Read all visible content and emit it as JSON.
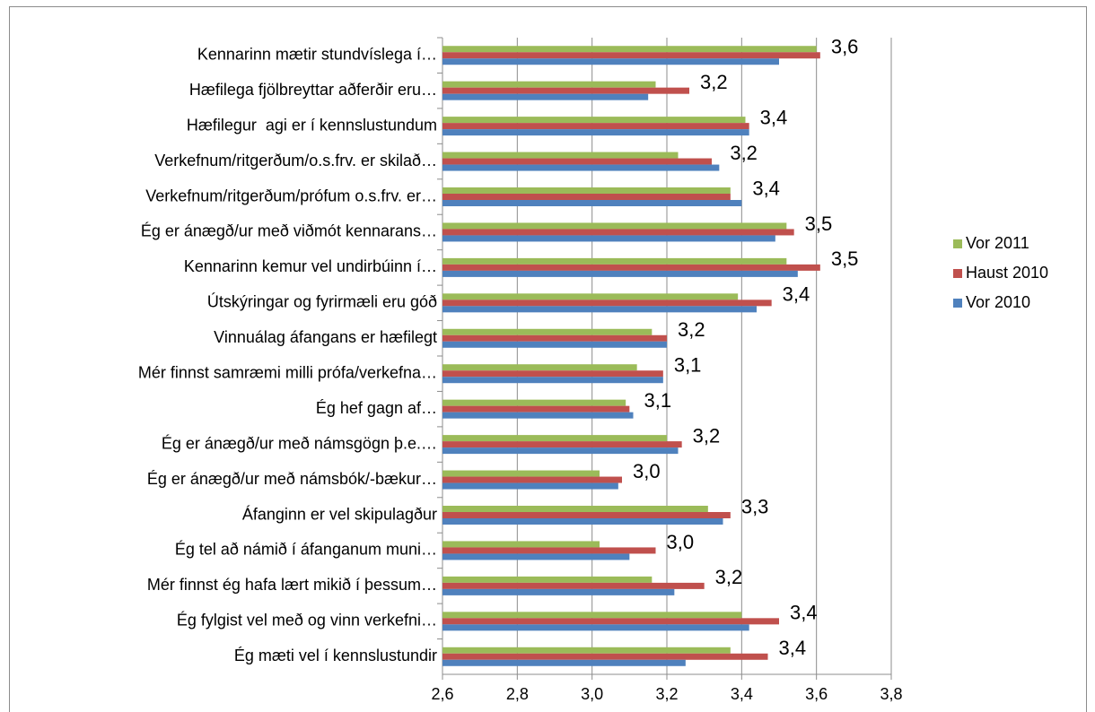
{
  "chart_data": {
    "type": "hbar",
    "categories": [
      "Kennarinn mætir stundvíslega í…",
      "Hæfilega fjölbreyttar aðferðir eru…",
      "Hæfilegur  agi er í kennslustundum",
      "Verkefnum/ritgerðum/o.s.frv. er skilað…",
      "Verkefnum/ritgerðum/prófum o.s.frv. er…",
      "Ég er ánægð/ur með viðmót kennarans…",
      "Kennarinn kemur vel undirbúinn í…",
      "Útskýringar og fyrirmæli eru góð",
      "Vinnuálag áfangans er hæfilegt",
      "Mér finnst samræmi milli prófa/verkefna…",
      "Ég hef gagn af…",
      "Ég er ánægð/ur með námsgögn þ.e.…",
      "Ég er ánægð/ur með námsbók/-bækur…",
      "Áfanginn er vel skipulagður",
      "Ég tel að námið í áfanganum muni…",
      "Mér finnst ég hafa lært mikið í þessum…",
      "Ég fylgist vel með og vinn verkefni…",
      "Ég mæti vel í kennslustundir"
    ],
    "series": [
      {
        "name": "Vor 2011",
        "color": "#9bbb59",
        "values": [
          3.6,
          3.17,
          3.41,
          3.23,
          3.37,
          3.52,
          3.52,
          3.39,
          3.16,
          3.12,
          3.09,
          3.2,
          3.02,
          3.31,
          3.02,
          3.16,
          3.4,
          3.37
        ],
        "value_labels": [
          "3,6",
          "3,2",
          "3,4",
          "3,2",
          "3,4",
          "3,5",
          "3,5",
          "3,4",
          "3,2",
          "3,1",
          "3,1",
          "3,2",
          "3,0",
          "3,3",
          "3,0",
          "3,2",
          "3,4",
          "3,4"
        ]
      },
      {
        "name": "Haust 2010",
        "color": "#c0504d",
        "values": [
          3.61,
          3.26,
          3.42,
          3.32,
          3.37,
          3.54,
          3.61,
          3.48,
          3.2,
          3.19,
          3.1,
          3.24,
          3.08,
          3.37,
          3.17,
          3.3,
          3.5,
          3.47
        ]
      },
      {
        "name": "Vor 2010",
        "color": "#4f81bd",
        "values": [
          3.5,
          3.15,
          3.42,
          3.34,
          3.4,
          3.49,
          3.55,
          3.44,
          3.2,
          3.19,
          3.11,
          3.23,
          3.07,
          3.35,
          3.1,
          3.22,
          3.42,
          3.25
        ]
      }
    ],
    "xlim": [
      2.6,
      3.8
    ],
    "xticks": [
      {
        "value": 2.6,
        "label": "2,6"
      },
      {
        "value": 2.8,
        "label": "2,8"
      },
      {
        "value": 3.0,
        "label": "3,0"
      },
      {
        "value": 3.2,
        "label": "3,2"
      },
      {
        "value": 3.4,
        "label": "3,4"
      },
      {
        "value": 3.6,
        "label": "3,6"
      },
      {
        "value": 3.8,
        "label": "3,8"
      }
    ],
    "grid": true,
    "legend": "right"
  }
}
